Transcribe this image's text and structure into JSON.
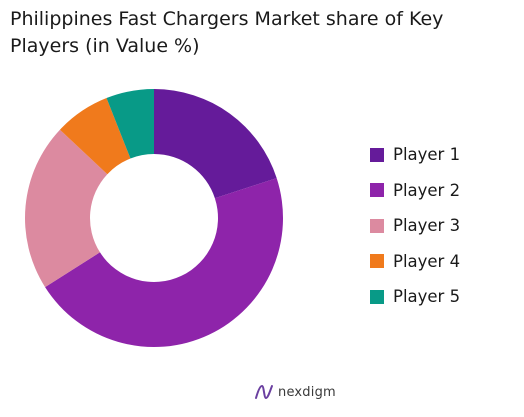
{
  "title": "Philippines Fast Chargers Market share of Key Players (in Value %)",
  "chart_data": {
    "type": "pie",
    "donut": true,
    "categories": [
      "Player 1",
      "Player 2",
      "Player 3",
      "Player 4",
      "Player 5"
    ],
    "values": [
      20,
      46,
      21,
      7,
      6
    ],
    "unit": "%",
    "legend_position": "right",
    "colors": [
      "#651b9a",
      "#8e24aa",
      "#dc8aa0",
      "#f07a1c",
      "#089a87"
    ]
  },
  "brand": {
    "name": "nexdigm"
  }
}
